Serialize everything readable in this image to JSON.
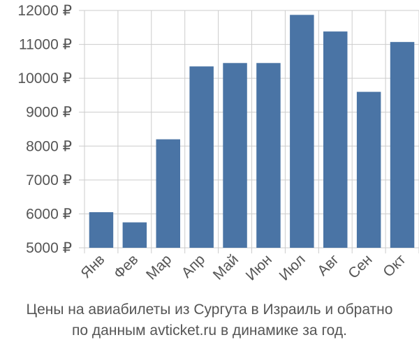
{
  "chart_data": {
    "type": "bar",
    "categories": [
      "Янв",
      "Фев",
      "Мар",
      "Апр",
      "Май",
      "Июн",
      "Июл",
      "Авг",
      "Сен",
      "Окт"
    ],
    "values": [
      6050,
      5750,
      8200,
      10350,
      10450,
      10450,
      11870,
      11380,
      9600,
      11070
    ],
    "y_ticks": [
      "5000 ₽",
      "6000 ₽",
      "7000 ₽",
      "8000 ₽",
      "9000 ₽",
      "10000 ₽",
      "11000 ₽",
      "12000 ₽"
    ],
    "ylim": [
      5000,
      12000
    ],
    "grid": true,
    "bar_color": "#4a74a5",
    "grid_color": "#cccccc"
  },
  "caption": {
    "line1": "Цены на авиабилеты из Сургута в Израиль и обратно",
    "line2": "по данным avticket.ru в динамике за год."
  }
}
